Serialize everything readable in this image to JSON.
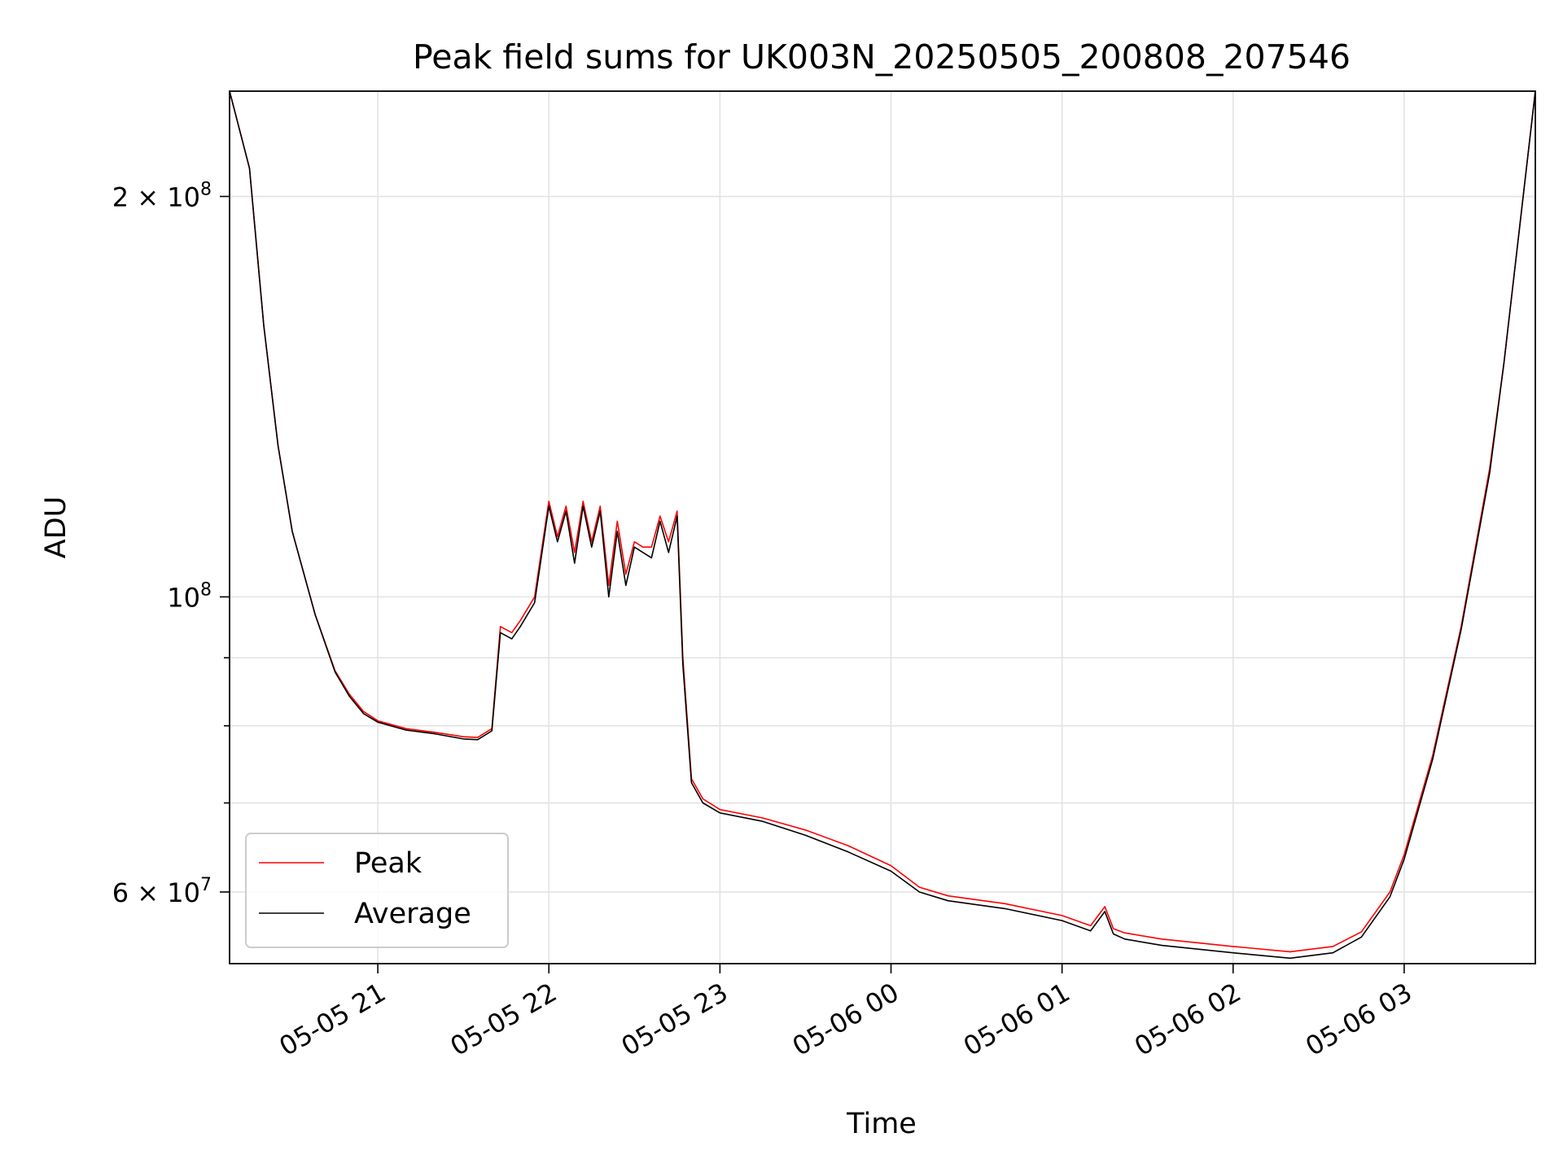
{
  "chart_data": {
    "type": "line",
    "title": "Peak field sums for UK003N_20250505_200808_207546",
    "xlabel": "Time",
    "ylabel": "ADU",
    "yscale": "log",
    "ylim": [
      53000000,
      240000000
    ],
    "xlim": [
      "2025-05-05 20:08",
      "2025-05-06 03:46"
    ],
    "grid": true,
    "legend_position": "lower-left",
    "x_ticks": [
      {
        "value": "2025-05-05 21:00",
        "label": "05-05 21"
      },
      {
        "value": "2025-05-05 22:00",
        "label": "05-05 22"
      },
      {
        "value": "2025-05-05 23:00",
        "label": "05-05 23"
      },
      {
        "value": "2025-05-06 00:00",
        "label": "05-06 00"
      },
      {
        "value": "2025-05-06 01:00",
        "label": "05-06 01"
      },
      {
        "value": "2025-05-06 02:00",
        "label": "05-06 02"
      },
      {
        "value": "2025-05-06 03:00",
        "label": "05-06 03"
      }
    ],
    "y_major_ticks": [
      {
        "value": 60000000,
        "base": "6 × 10",
        "exp": "7"
      },
      {
        "value": 100000000,
        "base": "10",
        "exp": "8"
      },
      {
        "value": 200000000,
        "base": "2 × 10",
        "exp": "8"
      }
    ],
    "y_minor_ticks": [
      70000000,
      80000000,
      90000000
    ],
    "series": [
      {
        "name": "Peak",
        "color": "#ff0000",
        "x": [
          "2025-05-05 20:08",
          "2025-05-05 20:15",
          "2025-05-05 20:20",
          "2025-05-05 20:25",
          "2025-05-05 20:30",
          "2025-05-05 20:38",
          "2025-05-05 20:45",
          "2025-05-05 20:50",
          "2025-05-05 20:55",
          "2025-05-05 21:00",
          "2025-05-05 21:10",
          "2025-05-05 21:20",
          "2025-05-05 21:30",
          "2025-05-05 21:35",
          "2025-05-05 21:40",
          "2025-05-05 21:43",
          "2025-05-05 21:47",
          "2025-05-05 21:50",
          "2025-05-05 21:55",
          "2025-05-05 22:00",
          "2025-05-05 22:03",
          "2025-05-05 22:06",
          "2025-05-05 22:09",
          "2025-05-05 22:12",
          "2025-05-05 22:15",
          "2025-05-05 22:18",
          "2025-05-05 22:21",
          "2025-05-05 22:24",
          "2025-05-05 22:27",
          "2025-05-05 22:30",
          "2025-05-05 22:33",
          "2025-05-05 22:36",
          "2025-05-05 22:39",
          "2025-05-05 22:42",
          "2025-05-05 22:45",
          "2025-05-05 22:47",
          "2025-05-05 22:50",
          "2025-05-05 22:54",
          "2025-05-05 23:00",
          "2025-05-05 23:15",
          "2025-05-05 23:30",
          "2025-05-05 23:45",
          "2025-05-06 00:00",
          "2025-05-06 00:10",
          "2025-05-06 00:20",
          "2025-05-06 00:40",
          "2025-05-06 01:00",
          "2025-05-06 01:10",
          "2025-05-06 01:15",
          "2025-05-06 01:18",
          "2025-05-06 01:22",
          "2025-05-06 01:35",
          "2025-05-06 02:00",
          "2025-05-06 02:20",
          "2025-05-06 02:35",
          "2025-05-06 02:45",
          "2025-05-06 02:55",
          "2025-05-06 03:00",
          "2025-05-06 03:10",
          "2025-05-06 03:20",
          "2025-05-06 03:30",
          "2025-05-06 03:35",
          "2025-05-06 03:46"
        ],
        "y": [
          240000000,
          210000000,
          160000000,
          130000000,
          112000000,
          97000000,
          88000000,
          84500000,
          82000000,
          80700000,
          79600000,
          79100000,
          78500000,
          78400000,
          79600000,
          95000000,
          94000000,
          96000000,
          100000000,
          118000000,
          111000000,
          117000000,
          108000000,
          118000000,
          110000000,
          117000000,
          102000000,
          114000000,
          104000000,
          110000000,
          109000000,
          109000000,
          115000000,
          110000000,
          116000000,
          90000000,
          73000000,
          70500000,
          69200000,
          68200000,
          66800000,
          65000000,
          62800000,
          60500000,
          59600000,
          58800000,
          57600000,
          56600000,
          58500000,
          56300000,
          55900000,
          55300000,
          54600000,
          54100000,
          54600000,
          56000000,
          60000000,
          64000000,
          76000000,
          95000000,
          125000000,
          150000000,
          240000000
        ]
      },
      {
        "name": "Average",
        "color": "#000000",
        "x": [
          "2025-05-05 20:08",
          "2025-05-05 20:15",
          "2025-05-05 20:20",
          "2025-05-05 20:25",
          "2025-05-05 20:30",
          "2025-05-05 20:38",
          "2025-05-05 20:45",
          "2025-05-05 20:50",
          "2025-05-05 20:55",
          "2025-05-05 21:00",
          "2025-05-05 21:10",
          "2025-05-05 21:20",
          "2025-05-05 21:30",
          "2025-05-05 21:35",
          "2025-05-05 21:40",
          "2025-05-05 21:43",
          "2025-05-05 21:47",
          "2025-05-05 21:50",
          "2025-05-05 21:55",
          "2025-05-05 22:00",
          "2025-05-05 22:03",
          "2025-05-05 22:06",
          "2025-05-05 22:09",
          "2025-05-05 22:12",
          "2025-05-05 22:15",
          "2025-05-05 22:18",
          "2025-05-05 22:21",
          "2025-05-05 22:24",
          "2025-05-05 22:27",
          "2025-05-05 22:30",
          "2025-05-05 22:33",
          "2025-05-05 22:36",
          "2025-05-05 22:39",
          "2025-05-05 22:42",
          "2025-05-05 22:45",
          "2025-05-05 22:47",
          "2025-05-05 22:50",
          "2025-05-05 22:54",
          "2025-05-05 23:00",
          "2025-05-05 23:15",
          "2025-05-05 23:30",
          "2025-05-05 23:45",
          "2025-05-06 00:00",
          "2025-05-06 00:10",
          "2025-05-06 00:20",
          "2025-05-06 00:40",
          "2025-05-06 01:00",
          "2025-05-06 01:10",
          "2025-05-06 01:15",
          "2025-05-06 01:18",
          "2025-05-06 01:22",
          "2025-05-06 01:35",
          "2025-05-06 02:00",
          "2025-05-06 02:20",
          "2025-05-06 02:35",
          "2025-05-06 02:45",
          "2025-05-06 02:55",
          "2025-05-06 03:00",
          "2025-05-06 03:10",
          "2025-05-06 03:20",
          "2025-05-06 03:30",
          "2025-05-06 03:35",
          "2025-05-06 03:46"
        ],
        "y": [
          240000000,
          210000000,
          160000000,
          130000000,
          112000000,
          97000000,
          87800000,
          84200000,
          81700000,
          80500000,
          79400000,
          78900000,
          78200000,
          78100000,
          79300000,
          94000000,
          93000000,
          95000000,
          99000000,
          117000000,
          110000000,
          116000000,
          106000000,
          117000000,
          109000000,
          116000000,
          100000000,
          112000000,
          102000000,
          109000000,
          108000000,
          107000000,
          114000000,
          108000000,
          115000000,
          89000000,
          72500000,
          70000000,
          68800000,
          67800000,
          66200000,
          64300000,
          62200000,
          60000000,
          59100000,
          58300000,
          57100000,
          56100000,
          58000000,
          55800000,
          55300000,
          54700000,
          54000000,
          53500000,
          54000000,
          55500000,
          59500000,
          63500000,
          75500000,
          94500000,
          124000000,
          150000000,
          240000000
        ]
      }
    ]
  }
}
